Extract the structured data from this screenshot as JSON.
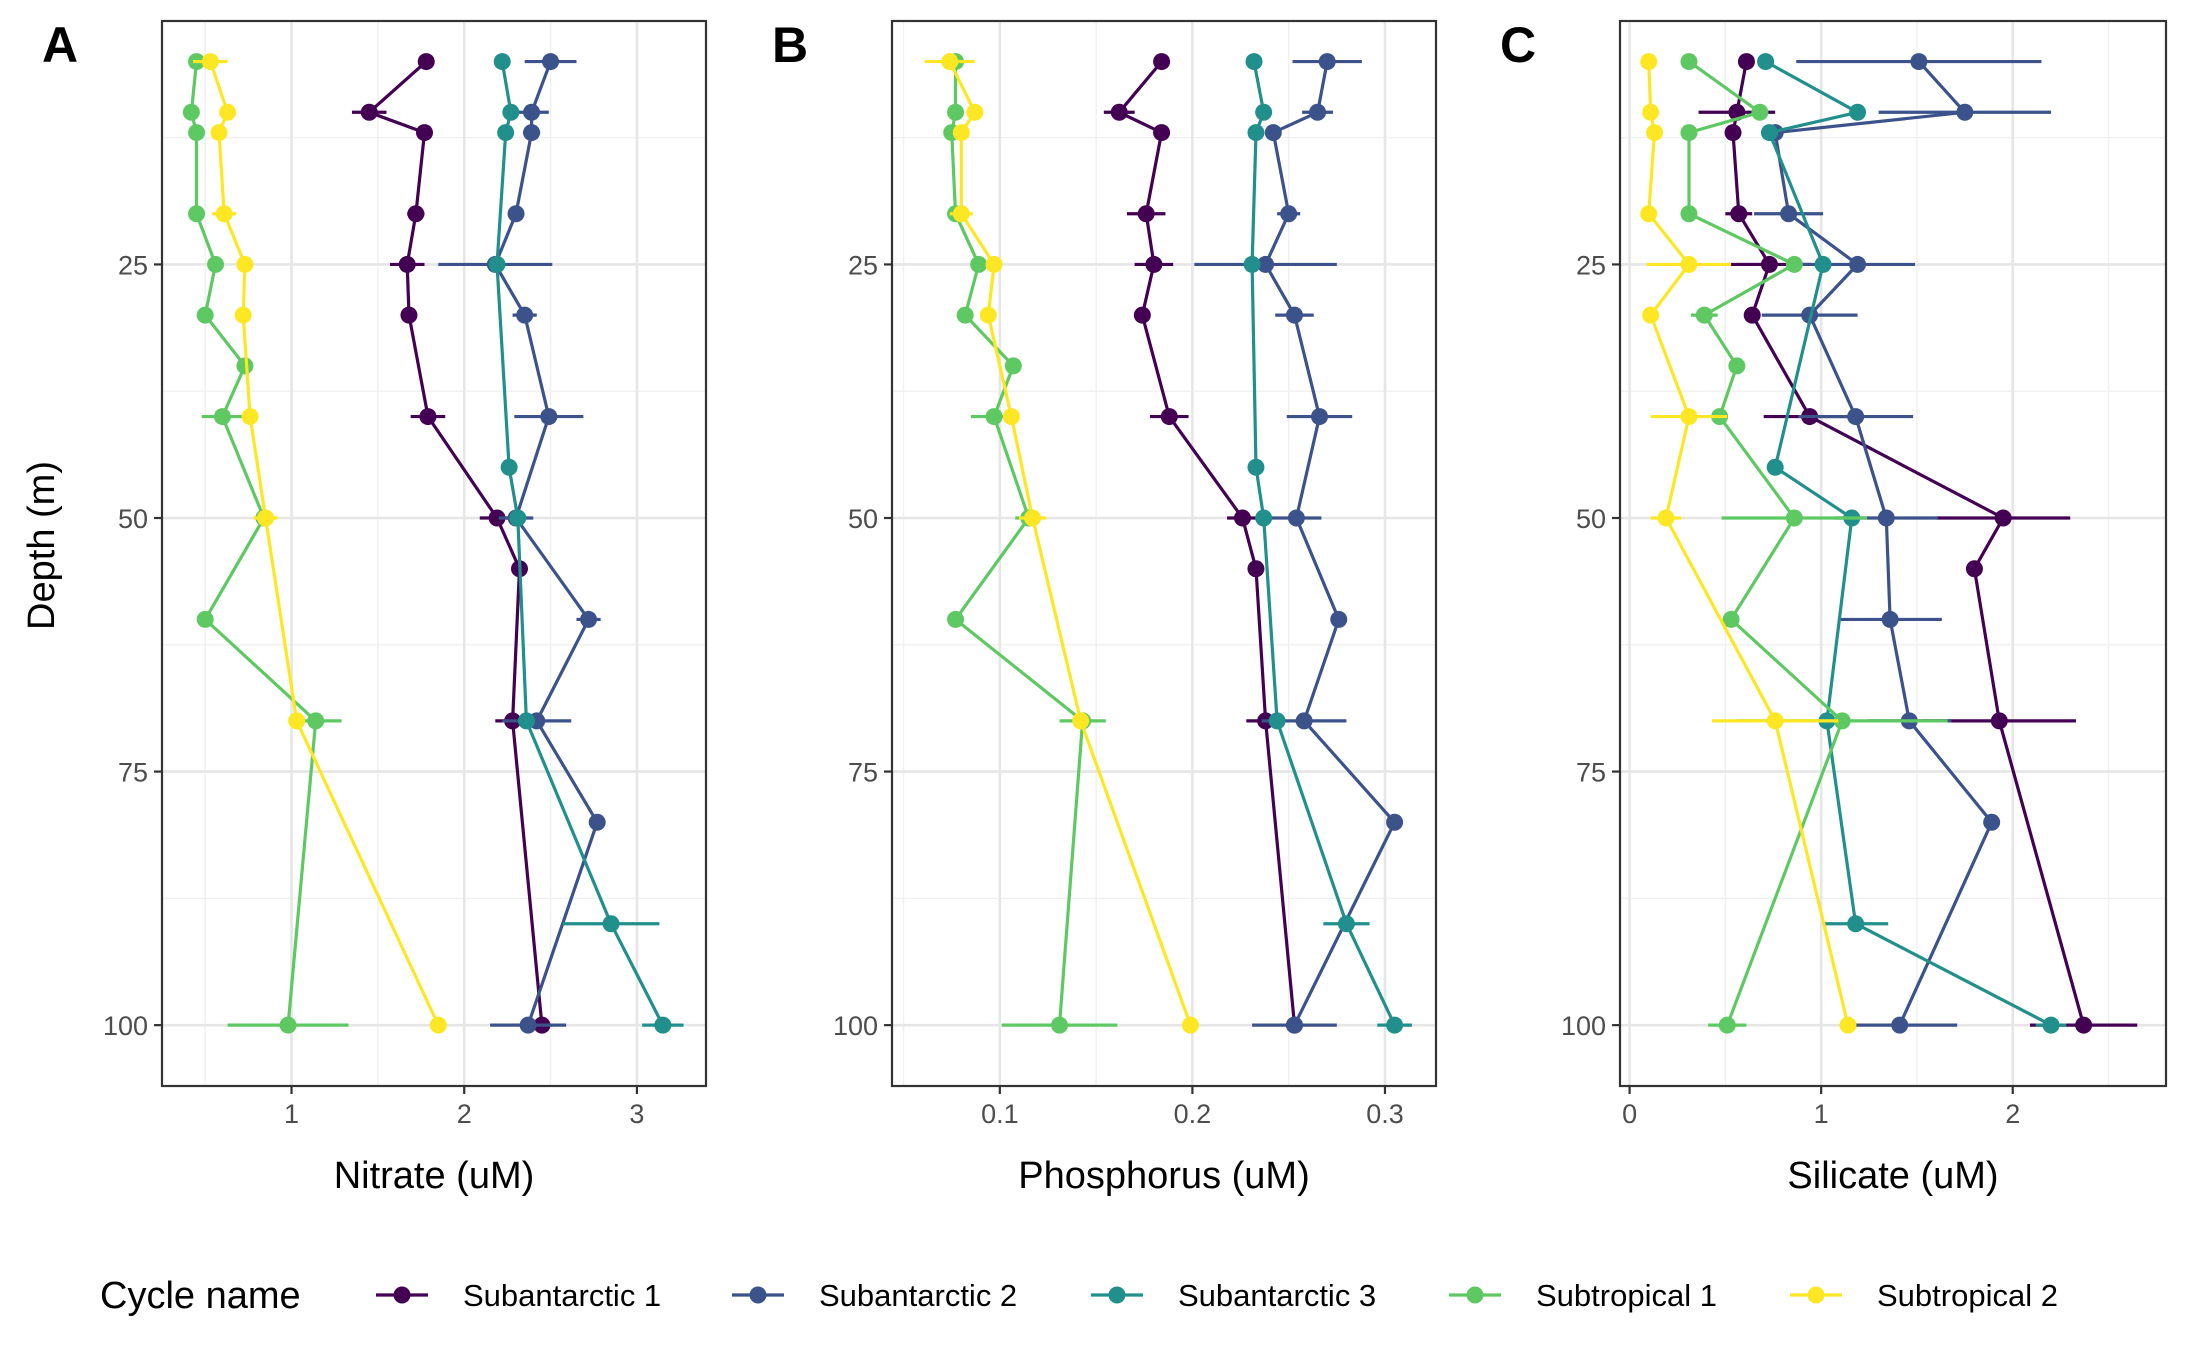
{
  "legend": {
    "title": "Cycle name",
    "entries": [
      {
        "name": "Subantarctic 1",
        "color": "#440154"
      },
      {
        "name": "Subantarctic 2",
        "color": "#3b528b"
      },
      {
        "name": "Subantarctic 3",
        "color": "#21908c"
      },
      {
        "name": "Subtropical 1",
        "color": "#5ec962"
      },
      {
        "name": "Subtropical 2",
        "color": "#fde725"
      }
    ]
  },
  "y_axis": {
    "label": "Depth (m)",
    "reversed": true,
    "ticks": [
      25,
      50,
      75,
      100
    ],
    "tick_labels": [
      "25",
      "50",
      "75",
      "100"
    ]
  },
  "chart_data": [
    {
      "panel": "A",
      "type": "line",
      "xlabel": "Nitrate (uM)",
      "ylabel": "Depth (m)",
      "xlim": [
        0.25,
        3.4
      ],
      "ylim": [
        106,
        1
      ],
      "xticks": [
        1,
        2,
        3
      ],
      "xtick_labels": [
        "1",
        "2",
        "3"
      ],
      "grid": true,
      "series": [
        {
          "name": "Subantarctic 1",
          "points": [
            {
              "x": 1.78,
              "y": 5
            },
            {
              "x": 1.45,
              "y": 10,
              "xerr": 0.1
            },
            {
              "x": 1.77,
              "y": 12
            },
            {
              "x": 1.72,
              "y": 20,
              "xerr": 0.05
            },
            {
              "x": 1.67,
              "y": 25,
              "xerr": 0.1
            },
            {
              "x": 1.68,
              "y": 30
            },
            {
              "x": 1.79,
              "y": 40,
              "xerr": 0.1
            },
            {
              "x": 2.19,
              "y": 50,
              "xerr": 0.1
            },
            {
              "x": 2.32,
              "y": 55
            },
            {
              "x": 2.28,
              "y": 70,
              "xerr": 0.1
            },
            {
              "x": 2.45,
              "y": 100
            }
          ]
        },
        {
          "name": "Subantarctic 2",
          "points": [
            {
              "x": 2.5,
              "y": 5,
              "xerr": 0.15
            },
            {
              "x": 2.39,
              "y": 10,
              "xerr": 0.1
            },
            {
              "x": 2.39,
              "y": 12,
              "xerr": 0.05
            },
            {
              "x": 2.3,
              "y": 20
            },
            {
              "x": 2.18,
              "y": 25,
              "xerr": 0.33
            },
            {
              "x": 2.35,
              "y": 30,
              "xerr": 0.07
            },
            {
              "x": 2.49,
              "y": 40,
              "xerr": 0.2
            },
            {
              "x": 2.3,
              "y": 50,
              "xerr": 0.1
            },
            {
              "x": 2.72,
              "y": 60,
              "xerr": 0.07
            },
            {
              "x": 2.42,
              "y": 70,
              "xerr": 0.2
            },
            {
              "x": 2.77,
              "y": 80
            },
            {
              "x": 2.37,
              "y": 100,
              "xerr": 0.22
            }
          ]
        },
        {
          "name": "Subantarctic 3",
          "points": [
            {
              "x": 2.22,
              "y": 5
            },
            {
              "x": 2.27,
              "y": 10
            },
            {
              "x": 2.24,
              "y": 12
            },
            {
              "x": 2.19,
              "y": 25
            },
            {
              "x": 2.26,
              "y": 45
            },
            {
              "x": 2.31,
              "y": 50
            },
            {
              "x": 2.36,
              "y": 70
            },
            {
              "x": 2.85,
              "y": 90,
              "xerr": 0.28
            },
            {
              "x": 3.15,
              "y": 100,
              "xerr": 0.12
            }
          ]
        },
        {
          "name": "Subtropical 1",
          "points": [
            {
              "x": 0.45,
              "y": 5
            },
            {
              "x": 0.42,
              "y": 10
            },
            {
              "x": 0.45,
              "y": 12
            },
            {
              "x": 0.45,
              "y": 20
            },
            {
              "x": 0.56,
              "y": 25
            },
            {
              "x": 0.5,
              "y": 30
            },
            {
              "x": 0.73,
              "y": 35
            },
            {
              "x": 0.6,
              "y": 40,
              "xerr": 0.12
            },
            {
              "x": 0.84,
              "y": 50
            },
            {
              "x": 0.5,
              "y": 60
            },
            {
              "x": 1.14,
              "y": 70,
              "xerr": 0.15
            },
            {
              "x": 0.98,
              "y": 100,
              "xerr": 0.35
            }
          ]
        },
        {
          "name": "Subtropical 2",
          "points": [
            {
              "x": 0.53,
              "y": 5,
              "xerr": 0.1
            },
            {
              "x": 0.63,
              "y": 10
            },
            {
              "x": 0.58,
              "y": 12
            },
            {
              "x": 0.61,
              "y": 20,
              "xerr": 0.07
            },
            {
              "x": 0.73,
              "y": 25
            },
            {
              "x": 0.72,
              "y": 30
            },
            {
              "x": 0.76,
              "y": 40
            },
            {
              "x": 0.85,
              "y": 50,
              "xerr": 0.07
            },
            {
              "x": 1.03,
              "y": 70
            },
            {
              "x": 1.85,
              "y": 100
            }
          ]
        }
      ]
    },
    {
      "panel": "B",
      "type": "line",
      "xlabel": "Phosphorus (uM)",
      "ylabel": "",
      "xlim": [
        0.044,
        0.3265
      ],
      "ylim": [
        106,
        1
      ],
      "xticks": [
        0.1,
        0.2,
        0.3
      ],
      "xtick_labels": [
        "0.1",
        "0.2",
        "0.3"
      ],
      "grid": true,
      "series": [
        {
          "name": "Subantarctic 1",
          "points": [
            {
              "x": 0.184,
              "y": 5
            },
            {
              "x": 0.162,
              "y": 10,
              "xerr": 0.008
            },
            {
              "x": 0.184,
              "y": 12
            },
            {
              "x": 0.176,
              "y": 20,
              "xerr": 0.01
            },
            {
              "x": 0.18,
              "y": 25,
              "xerr": 0.01
            },
            {
              "x": 0.174,
              "y": 30
            },
            {
              "x": 0.188,
              "y": 40,
              "xerr": 0.01
            },
            {
              "x": 0.226,
              "y": 50,
              "xerr": 0.008
            },
            {
              "x": 0.233,
              "y": 55
            },
            {
              "x": 0.238,
              "y": 70,
              "xerr": 0.01
            },
            {
              "x": 0.253,
              "y": 100
            }
          ]
        },
        {
          "name": "Subantarctic 2",
          "points": [
            {
              "x": 0.27,
              "y": 5,
              "xerr": 0.018
            },
            {
              "x": 0.265,
              "y": 10,
              "xerr": 0.008
            },
            {
              "x": 0.242,
              "y": 12
            },
            {
              "x": 0.25,
              "y": 20,
              "xerr": 0.006
            },
            {
              "x": 0.238,
              "y": 25,
              "xerr": 0.037
            },
            {
              "x": 0.253,
              "y": 30,
              "xerr": 0.01
            },
            {
              "x": 0.266,
              "y": 40,
              "xerr": 0.017
            },
            {
              "x": 0.254,
              "y": 50,
              "xerr": 0.013
            },
            {
              "x": 0.276,
              "y": 60
            },
            {
              "x": 0.258,
              "y": 70,
              "xerr": 0.022
            },
            {
              "x": 0.305,
              "y": 80
            },
            {
              "x": 0.253,
              "y": 100,
              "xerr": 0.022
            }
          ]
        },
        {
          "name": "Subantarctic 3",
          "points": [
            {
              "x": 0.232,
              "y": 5
            },
            {
              "x": 0.237,
              "y": 10
            },
            {
              "x": 0.233,
              "y": 12
            },
            {
              "x": 0.231,
              "y": 25
            },
            {
              "x": 0.233,
              "y": 45
            },
            {
              "x": 0.237,
              "y": 50
            },
            {
              "x": 0.244,
              "y": 70
            },
            {
              "x": 0.28,
              "y": 90,
              "xerr": 0.012
            },
            {
              "x": 0.305,
              "y": 100,
              "xerr": 0.009
            }
          ]
        },
        {
          "name": "Subtropical 1",
          "points": [
            {
              "x": 0.077,
              "y": 5
            },
            {
              "x": 0.077,
              "y": 10
            },
            {
              "x": 0.075,
              "y": 12
            },
            {
              "x": 0.077,
              "y": 20
            },
            {
              "x": 0.089,
              "y": 25
            },
            {
              "x": 0.082,
              "y": 30
            },
            {
              "x": 0.107,
              "y": 35
            },
            {
              "x": 0.097,
              "y": 40,
              "xerr": 0.012
            },
            {
              "x": 0.115,
              "y": 50,
              "xerr": 0.007
            },
            {
              "x": 0.077,
              "y": 60
            },
            {
              "x": 0.143,
              "y": 70,
              "xerr": 0.012
            },
            {
              "x": 0.131,
              "y": 100,
              "xerr": 0.03
            }
          ]
        },
        {
          "name": "Subtropical 2",
          "points": [
            {
              "x": 0.074,
              "y": 5,
              "xerr": 0.013
            },
            {
              "x": 0.087,
              "y": 10
            },
            {
              "x": 0.08,
              "y": 12
            },
            {
              "x": 0.08,
              "y": 20,
              "xerr": 0.006
            },
            {
              "x": 0.097,
              "y": 25
            },
            {
              "x": 0.094,
              "y": 30
            },
            {
              "x": 0.106,
              "y": 40
            },
            {
              "x": 0.117,
              "y": 50,
              "xerr": 0.007
            },
            {
              "x": 0.142,
              "y": 70
            },
            {
              "x": 0.199,
              "y": 100
            }
          ]
        }
      ]
    },
    {
      "panel": "C",
      "type": "line",
      "xlabel": "Silicate (uM)",
      "ylabel": "",
      "xlim": [
        -0.05,
        2.8
      ],
      "ylim": [
        106,
        1
      ],
      "xticks": [
        0,
        1,
        2
      ],
      "xtick_labels": [
        "0",
        "1",
        "2"
      ],
      "grid": true,
      "series": [
        {
          "name": "Subantarctic 1",
          "points": [
            {
              "x": 0.61,
              "y": 5
            },
            {
              "x": 0.56,
              "y": 10,
              "xerr": 0.2
            },
            {
              "x": 0.54,
              "y": 12
            },
            {
              "x": 0.57,
              "y": 20,
              "xerr": 0.07
            },
            {
              "x": 0.73,
              "y": 25,
              "xerr": 0.22
            },
            {
              "x": 0.64,
              "y": 30
            },
            {
              "x": 0.94,
              "y": 40,
              "xerr": 0.24
            },
            {
              "x": 1.95,
              "y": 50,
              "xerr": 0.35
            },
            {
              "x": 1.8,
              "y": 55
            },
            {
              "x": 1.93,
              "y": 70,
              "xerr": 0.4
            },
            {
              "x": 2.37,
              "y": 100,
              "xerr": 0.28
            }
          ]
        },
        {
          "name": "Subantarctic 2",
          "points": [
            {
              "x": 1.51,
              "y": 5,
              "xerr": 0.64
            },
            {
              "x": 1.75,
              "y": 10,
              "xerr": 0.45
            },
            {
              "x": 0.76,
              "y": 12
            },
            {
              "x": 0.83,
              "y": 20,
              "xerr": 0.18
            },
            {
              "x": 1.19,
              "y": 25,
              "xerr": 0.3
            },
            {
              "x": 0.94,
              "y": 30,
              "xerr": 0.25
            },
            {
              "x": 1.18,
              "y": 40,
              "xerr": 0.3
            },
            {
              "x": 1.34,
              "y": 50,
              "xerr": 0.27
            },
            {
              "x": 1.36,
              "y": 60,
              "xerr": 0.27
            },
            {
              "x": 1.46,
              "y": 70,
              "xerr": 0.22
            },
            {
              "x": 1.89,
              "y": 80
            },
            {
              "x": 1.41,
              "y": 100,
              "xerr": 0.3
            }
          ]
        },
        {
          "name": "Subantarctic 3",
          "points": [
            {
              "x": 0.71,
              "y": 5
            },
            {
              "x": 1.19,
              "y": 10
            },
            {
              "x": 0.73,
              "y": 12
            },
            {
              "x": 1.01,
              "y": 25
            },
            {
              "x": 0.76,
              "y": 45
            },
            {
              "x": 1.16,
              "y": 50
            },
            {
              "x": 1.03,
              "y": 70
            },
            {
              "x": 1.18,
              "y": 90,
              "xerr": 0.17
            },
            {
              "x": 2.2,
              "y": 100,
              "xerr": 0.08
            }
          ]
        },
        {
          "name": "Subtropical 1",
          "points": [
            {
              "x": 0.31,
              "y": 5
            },
            {
              "x": 0.68,
              "y": 10
            },
            {
              "x": 0.31,
              "y": 12
            },
            {
              "x": 0.31,
              "y": 20
            },
            {
              "x": 0.86,
              "y": 25
            },
            {
              "x": 0.39,
              "y": 30,
              "xerr": 0.07
            },
            {
              "x": 0.56,
              "y": 35
            },
            {
              "x": 0.47,
              "y": 40
            },
            {
              "x": 0.86,
              "y": 50,
              "xerr": 0.38
            },
            {
              "x": 0.53,
              "y": 60
            },
            {
              "x": 1.11,
              "y": 70,
              "xerr": 0.55
            },
            {
              "x": 0.51,
              "y": 100,
              "xerr": 0.1
            }
          ]
        },
        {
          "name": "Subtropical 2",
          "points": [
            {
              "x": 0.1,
              "y": 5
            },
            {
              "x": 0.11,
              "y": 10
            },
            {
              "x": 0.13,
              "y": 12
            },
            {
              "x": 0.1,
              "y": 20
            },
            {
              "x": 0.31,
              "y": 25,
              "xerr": 0.22
            },
            {
              "x": 0.11,
              "y": 30
            },
            {
              "x": 0.31,
              "y": 40,
              "xerr": 0.2
            },
            {
              "x": 0.19,
              "y": 50,
              "xerr": 0.08
            },
            {
              "x": 0.76,
              "y": 70,
              "xerr": 0.33
            },
            {
              "x": 1.14,
              "y": 100
            }
          ]
        }
      ]
    }
  ]
}
